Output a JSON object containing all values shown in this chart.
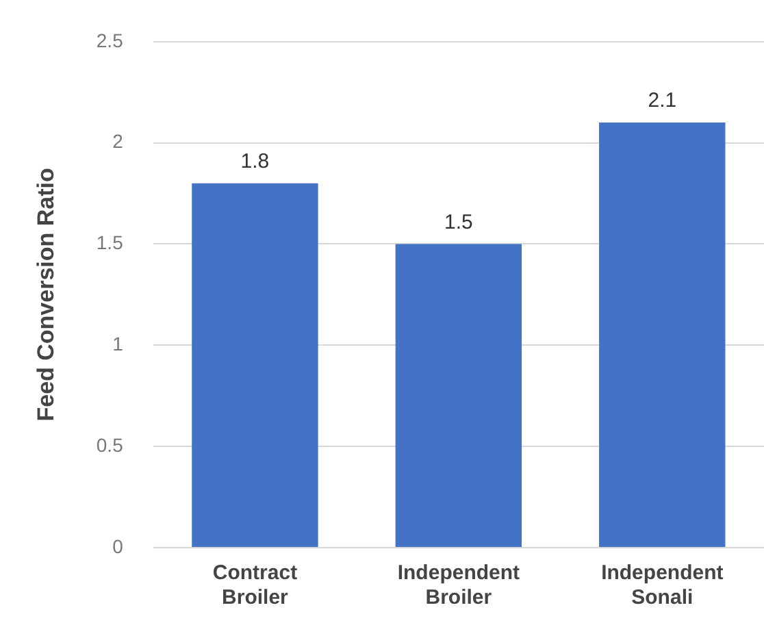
{
  "chart_data": {
    "type": "bar",
    "ylabel": "Feed Conversion Ratio",
    "categories": [
      "Contract Broiler",
      "Independent Broiler",
      "Independent Sonali"
    ],
    "values": [
      1.8,
      1.5,
      2.1
    ],
    "color": "#4472c4",
    "ylim": [
      0,
      2.5
    ],
    "yticks": [
      0,
      0.5,
      1,
      1.5,
      2,
      2.5
    ],
    "grid": "y",
    "data_labels": true
  }
}
